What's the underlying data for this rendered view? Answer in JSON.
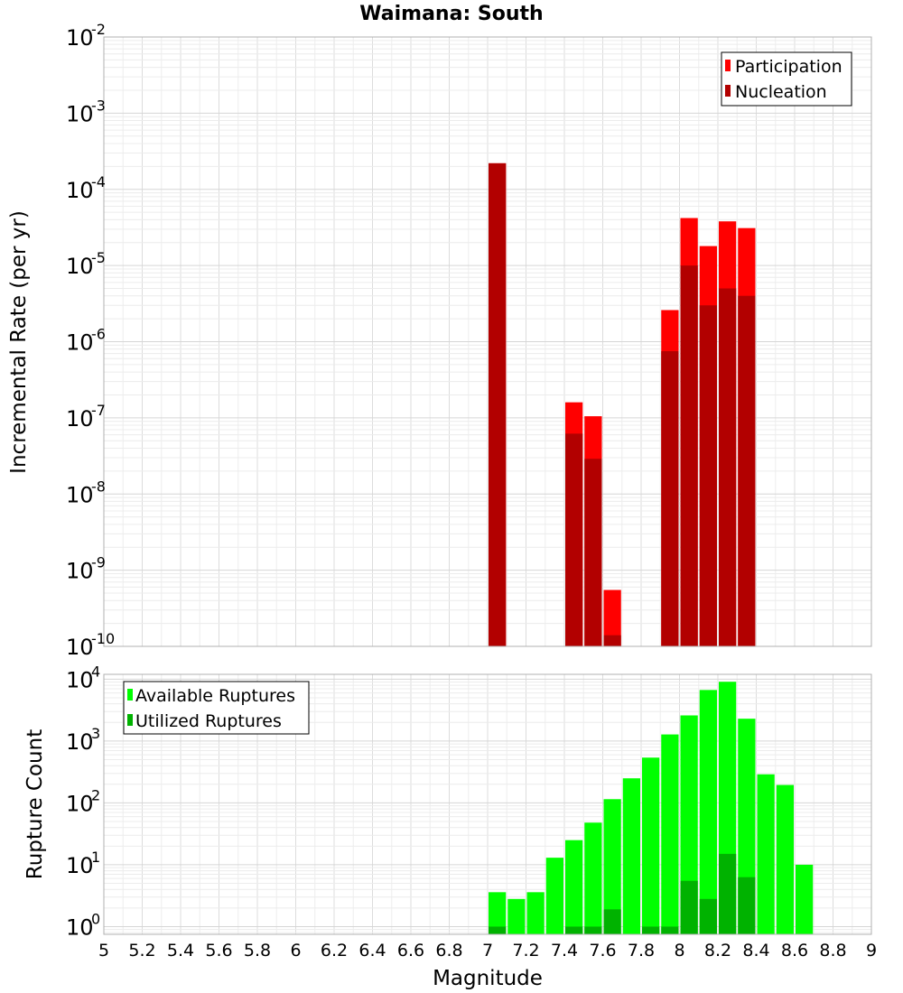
{
  "title": "Waimana: South",
  "xlabel": "Magnitude",
  "x_ticks": [
    5,
    5.2,
    5.4,
    5.6,
    5.8,
    6,
    6.2,
    6.4,
    6.6,
    6.8,
    7,
    7.2,
    7.4,
    7.6,
    7.8,
    8,
    8.2,
    8.4,
    8.6,
    8.8,
    9
  ],
  "colors": {
    "participation": "#ff0000",
    "nucleation": "#b20000",
    "available": "#00ff00",
    "utilized": "#00b200"
  },
  "chart_data": [
    {
      "type": "bar",
      "ylabel": "Incremental Rate (per yr)",
      "xlim": [
        5,
        9
      ],
      "ylim": [
        1e-10,
        0.01
      ],
      "y_scale": "log",
      "grid": true,
      "legend": "top-right",
      "x_tick_labels": [
        "5",
        "5.2",
        "5.4",
        "5.6",
        "5.8",
        "6",
        "6.2",
        "6.4",
        "6.6",
        "6.8",
        "7",
        "7.2",
        "7.4",
        "7.6",
        "7.8",
        "8",
        "8.2",
        "8.4",
        "8.6",
        "8.8",
        "9"
      ],
      "y_tick_exponents": [
        -10,
        -9,
        -8,
        -7,
        -6,
        -5,
        -4,
        -3,
        -2
      ],
      "x": [
        7.05,
        7.45,
        7.55,
        7.65,
        7.95,
        8.05,
        8.15,
        8.25,
        8.35
      ],
      "series": [
        {
          "name": "Participation",
          "values": [
            0.00022,
            1.6e-07,
            1.05e-07,
            5.5e-10,
            2.6e-06,
            4.2e-05,
            1.8e-05,
            3.8e-05,
            3.1e-05
          ]
        },
        {
          "name": "Nucleation",
          "values": [
            0.00022,
            6.2e-08,
            2.9e-08,
            1.4e-10,
            7.5e-07,
            1e-05,
            3e-06,
            5e-06,
            4e-06
          ]
        }
      ]
    },
    {
      "type": "bar",
      "ylabel": "Rupture Count",
      "xlim": [
        5,
        9
      ],
      "ylim": [
        0.75,
        12000
      ],
      "y_scale": "log",
      "grid": true,
      "legend": "top-left",
      "y_tick_exponents": [
        0,
        1,
        2,
        3,
        4
      ],
      "x": [
        7.05,
        7.15,
        7.25,
        7.35,
        7.45,
        7.55,
        7.65,
        7.75,
        7.85,
        7.95,
        8.05,
        8.15,
        8.25,
        8.35,
        8.45,
        8.55,
        8.65
      ],
      "series": [
        {
          "name": "Available Ruptures",
          "values": [
            3.6,
            2.8,
            3.6,
            13,
            25,
            48,
            115,
            250,
            540,
            1280,
            2600,
            6700,
            9100,
            2300,
            290,
            195,
            10
          ]
        },
        {
          "name": "Utilized Ruptures",
          "values": [
            1,
            0,
            0,
            0,
            1,
            1,
            1.9,
            0,
            1,
            1,
            5.5,
            2.8,
            15,
            6.3,
            0,
            0,
            0
          ]
        }
      ]
    }
  ]
}
